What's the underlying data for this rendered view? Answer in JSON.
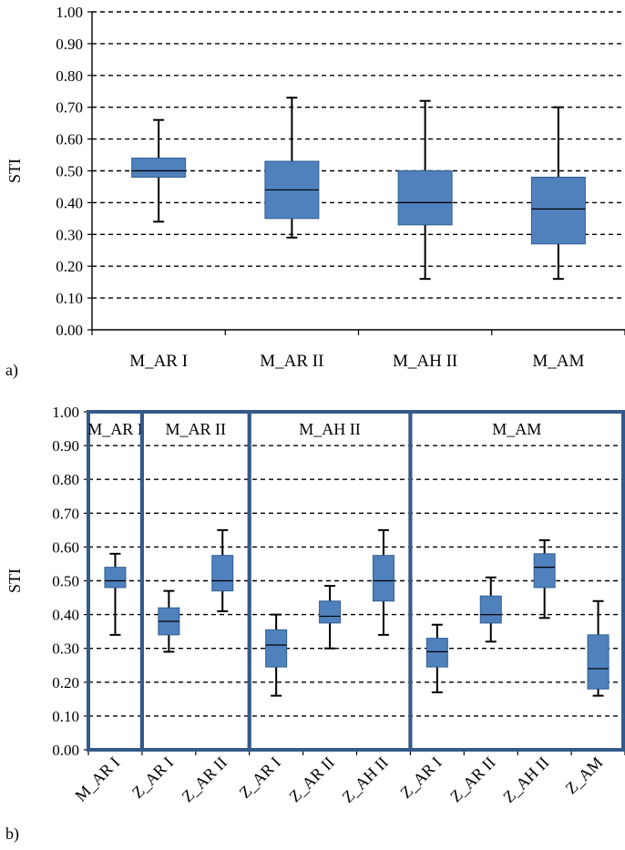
{
  "chart_data": [
    {
      "type": "box",
      "panel_label": "a)",
      "ylabel": "STI",
      "ylim": [
        0,
        1
      ],
      "y_ticks": [
        "0.00",
        "0.10",
        "0.20",
        "0.30",
        "0.40",
        "0.50",
        "0.60",
        "0.70",
        "0.80",
        "0.90",
        "1.00"
      ],
      "grid": "dashed horizontal",
      "categories": [
        "M_AR I",
        "M_AR II",
        "M_AH II",
        "M_AM"
      ],
      "boxes": [
        {
          "min": 0.34,
          "q1": 0.48,
          "median": 0.5,
          "q3": 0.54,
          "max": 0.66
        },
        {
          "min": 0.29,
          "q1": 0.35,
          "median": 0.44,
          "q3": 0.53,
          "max": 0.73
        },
        {
          "min": 0.16,
          "q1": 0.33,
          "median": 0.4,
          "q3": 0.5,
          "max": 0.72
        },
        {
          "min": 0.16,
          "q1": 0.27,
          "median": 0.38,
          "q3": 0.48,
          "max": 0.7
        }
      ]
    },
    {
      "type": "box",
      "panel_label": "b)",
      "ylabel": "STI",
      "ylim": [
        0,
        1
      ],
      "y_ticks": [
        "0.00",
        "0.10",
        "0.20",
        "0.30",
        "0.40",
        "0.50",
        "0.60",
        "0.70",
        "0.80",
        "0.90",
        "1.00"
      ],
      "grid": "dashed horizontal",
      "categories": [
        "M_AR I",
        "Z_AR I",
        "Z_AR II",
        "Z_AR I",
        "Z_AR II",
        "Z_AH II",
        "Z_AR I",
        "Z_AR II",
        "Z_AH II",
        "Z_AM"
      ],
      "groups": [
        {
          "label": "M_AR I",
          "from": 0,
          "to": 0
        },
        {
          "label": "M_AR II",
          "from": 1,
          "to": 2
        },
        {
          "label": "M_AH II",
          "from": 3,
          "to": 5
        },
        {
          "label": "M_AM",
          "from": 6,
          "to": 9
        }
      ],
      "boxes": [
        {
          "min": 0.34,
          "q1": 0.48,
          "median": 0.5,
          "q3": 0.54,
          "max": 0.58
        },
        {
          "min": 0.29,
          "q1": 0.34,
          "median": 0.38,
          "q3": 0.42,
          "max": 0.47
        },
        {
          "min": 0.41,
          "q1": 0.47,
          "median": 0.5,
          "q3": 0.575,
          "max": 0.65
        },
        {
          "min": 0.16,
          "q1": 0.245,
          "median": 0.31,
          "q3": 0.355,
          "max": 0.4
        },
        {
          "min": 0.3,
          "q1": 0.375,
          "median": 0.395,
          "q3": 0.44,
          "max": 0.485
        },
        {
          "min": 0.34,
          "q1": 0.44,
          "median": 0.5,
          "q3": 0.575,
          "max": 0.65
        },
        {
          "min": 0.17,
          "q1": 0.245,
          "median": 0.29,
          "q3": 0.33,
          "max": 0.37
        },
        {
          "min": 0.32,
          "q1": 0.375,
          "median": 0.4,
          "q3": 0.455,
          "max": 0.51
        },
        {
          "min": 0.39,
          "q1": 0.48,
          "median": 0.54,
          "q3": 0.58,
          "max": 0.62
        },
        {
          "min": 0.16,
          "q1": 0.18,
          "median": 0.24,
          "q3": 0.34,
          "max": 0.44
        }
      ]
    }
  ],
  "colors": {
    "box_fill": "#4f81bd",
    "box_stroke": "#2f5f94",
    "group_frame": "#345a8a",
    "grid": "#000000"
  }
}
